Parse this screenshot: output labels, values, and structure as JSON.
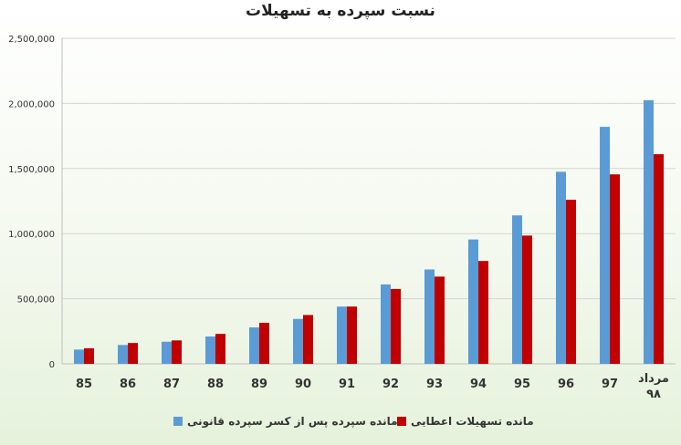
{
  "chart_data": {
    "type": "bar",
    "title": "نسبت سپرده به تسهیلات",
    "categories": [
      "85",
      "86",
      "87",
      "88",
      "89",
      "90",
      "91",
      "92",
      "93",
      "94",
      "95",
      "96",
      "97",
      "مرداد ۹۸"
    ],
    "series": [
      {
        "name": "مانده سپرده پس از کسر سپرده قانونی",
        "color": "#5b9bd5",
        "values": [
          110000,
          145000,
          170000,
          210000,
          280000,
          345000,
          440000,
          610000,
          725000,
          955000,
          1140000,
          1475000,
          1820000,
          2025000
        ]
      },
      {
        "name": "مانده تسهیلات اعطایی",
        "color": "#c00000",
        "values": [
          120000,
          160000,
          180000,
          230000,
          315000,
          375000,
          440000,
          575000,
          670000,
          790000,
          985000,
          1260000,
          1455000,
          1610000
        ]
      }
    ],
    "y_ticks": [
      "0",
      "500,000",
      "1,000,000",
      "1,500,000",
      "2,000,000",
      "2,500,000"
    ],
    "ylim": [
      0,
      2500000
    ],
    "grid": true,
    "legend_position": "bottom"
  }
}
